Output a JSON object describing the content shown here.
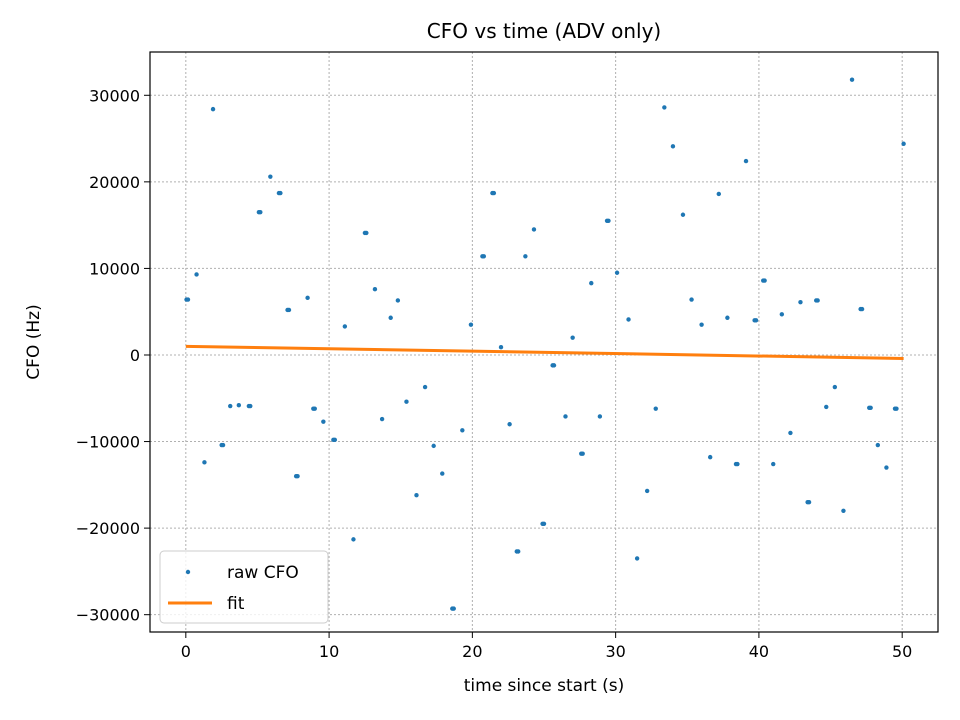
{
  "chart_data": {
    "type": "scatter",
    "title": "CFO vs time (ADV only)",
    "xlabel": "time since start (s)",
    "ylabel": "CFO (Hz)",
    "xlim": [
      -2.5,
      52.5
    ],
    "ylim": [
      -32000,
      35000
    ],
    "xticks": [
      0,
      10,
      20,
      30,
      40,
      50
    ],
    "yticks": [
      -30000,
      -20000,
      -10000,
      0,
      10000,
      20000,
      30000
    ],
    "ytick_labels": [
      "−30000",
      "−20000",
      "−10000",
      "0",
      "10000",
      "20000",
      "30000"
    ],
    "xtick_labels": [
      "0",
      "10",
      "20",
      "30",
      "40",
      "50"
    ],
    "grid": true,
    "legend_position": "lower-left",
    "series": [
      {
        "name": "raw CFO",
        "kind": "points",
        "color": "#1f77b4",
        "x": [
          0.05,
          0.15,
          0.75,
          1.3,
          1.9,
          2.5,
          2.6,
          3.1,
          3.7,
          4.4,
          4.5,
          5.1,
          5.2,
          5.9,
          6.5,
          6.6,
          7.1,
          7.2,
          7.7,
          7.8,
          8.5,
          8.9,
          9.0,
          9.6,
          10.3,
          10.4,
          11.1,
          11.7,
          12.5,
          12.6,
          13.2,
          13.7,
          14.3,
          14.8,
          15.4,
          16.1,
          16.7,
          17.3,
          17.9,
          18.6,
          18.7,
          19.3,
          19.9,
          20.7,
          20.8,
          21.4,
          21.5,
          22.0,
          22.6,
          23.1,
          23.2,
          23.7,
          24.3,
          24.9,
          25.0,
          25.6,
          25.7,
          26.5,
          27.0,
          27.6,
          27.7,
          28.3,
          28.9,
          29.4,
          29.5,
          30.1,
          30.9,
          31.5,
          32.2,
          32.8,
          33.4,
          34.0,
          34.7,
          35.3,
          36.0,
          36.6,
          37.2,
          37.8,
          38.4,
          38.5,
          39.1,
          39.7,
          39.8,
          40.3,
          40.4,
          41.0,
          41.6,
          42.2,
          42.9,
          43.4,
          43.5,
          44.0,
          44.1,
          44.7,
          45.3,
          45.9,
          46.5,
          47.1,
          47.2,
          47.7,
          47.8,
          48.3,
          48.9,
          49.5,
          49.6,
          50.1
        ],
        "y": [
          6400,
          6400,
          9300,
          -12400,
          28400,
          -10400,
          -10400,
          -5900,
          -5800,
          -5900,
          -5900,
          16500,
          16500,
          20600,
          18700,
          18700,
          5200,
          5200,
          -14000,
          -14000,
          6600,
          -6200,
          -6200,
          -7700,
          -9800,
          -9800,
          3300,
          -21300,
          14100,
          14100,
          7600,
          -7400,
          4300,
          6300,
          -5400,
          -16200,
          -3700,
          -10500,
          -13700,
          -29300,
          -29300,
          -8700,
          3500,
          11400,
          11400,
          18700,
          18700,
          900,
          -8000,
          -22700,
          -22700,
          11400,
          14500,
          -19500,
          -19500,
          -1200,
          -1200,
          -7100,
          2000,
          -11400,
          -11400,
          8300,
          -7100,
          15500,
          15500,
          9500,
          4100,
          -23500,
          -15700,
          -6200,
          28600,
          24100,
          16200,
          6400,
          3500,
          -11800,
          18600,
          4300,
          -12600,
          -12600,
          22400,
          4000,
          4000,
          8600,
          8600,
          -12600,
          4700,
          -9000,
          6100,
          -17000,
          -17000,
          6300,
          6300,
          -6000,
          -3700,
          -18000,
          31800,
          5300,
          5300,
          -6100,
          -6100,
          -10400,
          -13000,
          -6200,
          -6200,
          24400
        ]
      },
      {
        "name": "fit",
        "kind": "line",
        "color": "#ff7f0e",
        "x": [
          0,
          50.1
        ],
        "y": [
          1000,
          -400
        ]
      }
    ]
  }
}
